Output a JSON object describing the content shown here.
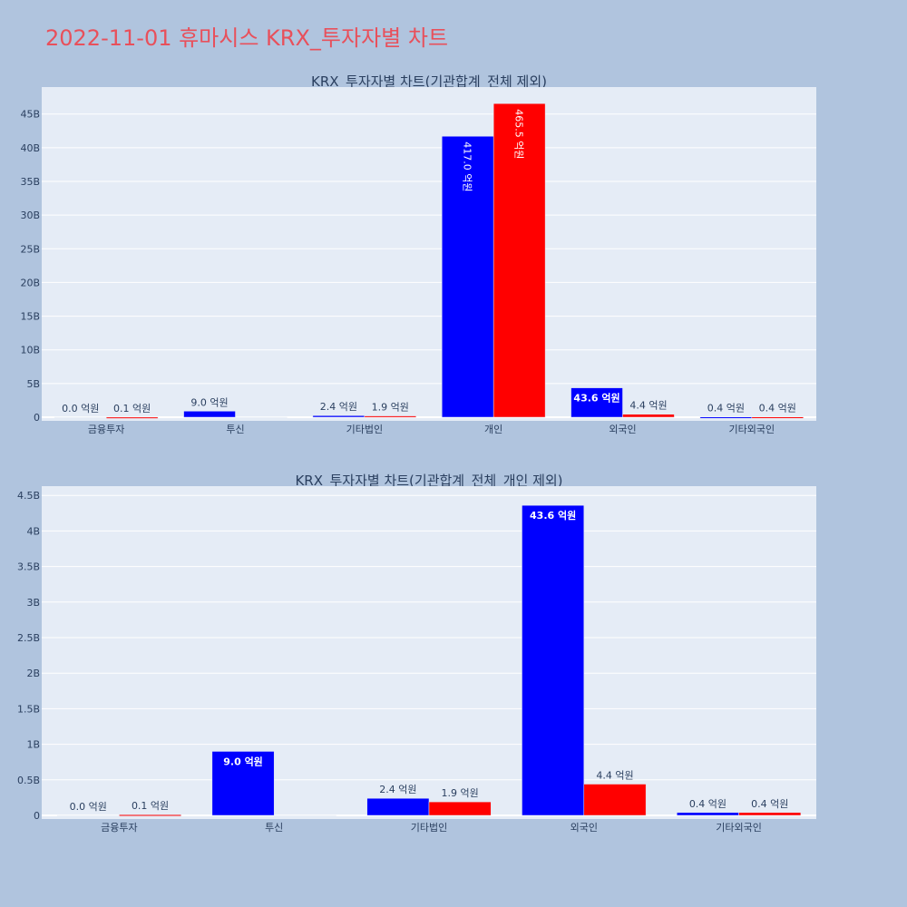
{
  "page": {
    "title": "2022-11-01 휴마시스 KRX_투자자별 차트"
  },
  "colors": {
    "buy": "#0000ff",
    "sell": "#ff0000",
    "plot_bg": "#e5ecf6",
    "paper_bg": "#b0c4de",
    "grid": "#ffffff",
    "text": "#2a3f5f"
  },
  "chart_data": [
    {
      "type": "bar",
      "title": "KRX_투자자별 차트(기관합계_전체 제외)",
      "categories": [
        "금융투자",
        "투신",
        "기타법인",
        "개인",
        "외국인",
        "기타외국인"
      ],
      "ylim": [
        0,
        49000000000
      ],
      "yticks": [
        0,
        5000000000,
        10000000000,
        15000000000,
        20000000000,
        25000000000,
        30000000000,
        35000000000,
        40000000000,
        45000000000
      ],
      "ytick_labels": [
        "0",
        "5B",
        "10B",
        "15B",
        "20B",
        "25B",
        "30B",
        "35B",
        "40B",
        "45B"
      ],
      "series": [
        {
          "color": "#0000ff",
          "values": [
            0,
            900000000,
            240000000,
            41700000000,
            4360000000,
            40000000
          ],
          "labels": [
            "0.0 억원",
            "9.0 억원",
            "2.4 억원",
            "417.0 억원",
            "43.6 억원",
            "0.4 억원"
          ]
        },
        {
          "color": "#ff0000",
          "values": [
            10000000,
            0,
            190000000,
            46550000000,
            440000000,
            40000000
          ],
          "labels": [
            "0.1 억원",
            "",
            "1.9 억원",
            "465.5 억원",
            "4.4 억원",
            "0.4 억원"
          ]
        }
      ]
    },
    {
      "type": "bar",
      "title": "KRX_투자자별 차트(기관합계_전체_개인 제외)",
      "categories": [
        "금융투자",
        "투신",
        "기타법인",
        "외국인",
        "기타외국인"
      ],
      "ylim": [
        0,
        4630000000
      ],
      "yticks": [
        0,
        500000000,
        1000000000,
        1500000000,
        2000000000,
        2500000000,
        3000000000,
        3500000000,
        4000000000,
        4500000000
      ],
      "ytick_labels": [
        "0",
        "0.5B",
        "1B",
        "1.5B",
        "2B",
        "2.5B",
        "3B",
        "3.5B",
        "4B",
        "4.5B"
      ],
      "series": [
        {
          "color": "#0000ff",
          "values": [
            0,
            900000000,
            240000000,
            4360000000,
            40000000
          ],
          "labels": [
            "0.0 억원",
            "9.0 억원",
            "2.4 억원",
            "43.6 억원",
            "0.4 억원"
          ]
        },
        {
          "color": "#ff0000",
          "values": [
            10000000,
            0,
            190000000,
            440000000,
            40000000
          ],
          "labels": [
            "0.1 억원",
            "",
            "1.9 억원",
            "4.4 억원",
            "0.4 억원"
          ]
        }
      ]
    }
  ]
}
